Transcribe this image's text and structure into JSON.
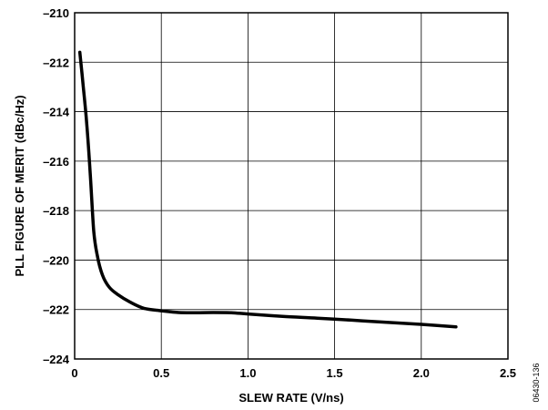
{
  "chart_data": {
    "type": "line",
    "xlabel": "SLEW RATE (V/ns)",
    "ylabel": "PLL FIGURE OF MERIT (dBc/Hz)",
    "xlim": [
      0,
      2.5
    ],
    "ylim": [
      -224,
      -210
    ],
    "x_ticks": [
      0,
      0.5,
      1.0,
      1.5,
      2.0,
      2.5
    ],
    "x_tick_labels": [
      "0",
      "0.5",
      "1.0",
      "1.5",
      "2.0",
      "2.5"
    ],
    "y_ticks": [
      -210,
      -212,
      -214,
      -216,
      -218,
      -220,
      -222,
      -224
    ],
    "y_tick_labels": [
      "–210",
      "–212",
      "–214",
      "–216",
      "–218",
      "–220",
      "–222",
      "–224"
    ],
    "grid": true,
    "line_color": "#000000",
    "series": [
      {
        "x": [
          0.03,
          0.05,
          0.07,
          0.09,
          0.11,
          0.13,
          0.16,
          0.2,
          0.25,
          0.32,
          0.4,
          0.5,
          0.6,
          0.7,
          0.8,
          0.9,
          1.0,
          1.2,
          1.4,
          1.6,
          1.8,
          2.0,
          2.2
        ],
        "y": [
          -211.6,
          -213.0,
          -214.5,
          -216.5,
          -218.8,
          -219.8,
          -220.6,
          -221.1,
          -221.4,
          -221.7,
          -221.95,
          -222.05,
          -222.12,
          -222.13,
          -222.12,
          -222.13,
          -222.18,
          -222.28,
          -222.35,
          -222.43,
          -222.52,
          -222.6,
          -222.7
        ]
      }
    ]
  },
  "figure_id": "06430-136"
}
